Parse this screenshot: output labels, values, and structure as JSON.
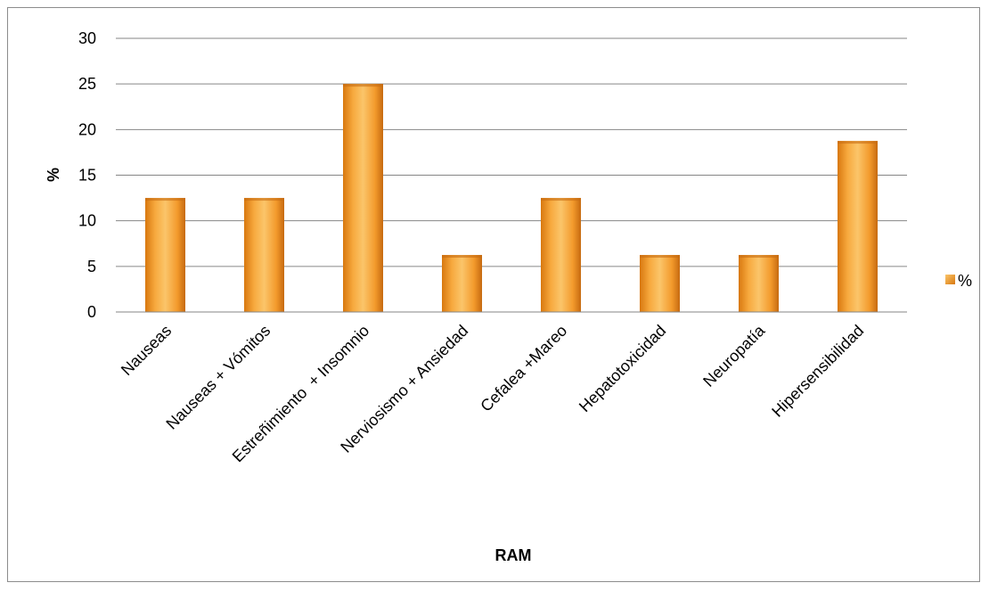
{
  "chart_data": {
    "type": "bar",
    "categories": [
      "Nauseas",
      "Nauseas + Vómitos",
      "Estreñimiento  + Insomnio",
      "Nerviosismo + Ansiedad",
      "Cefalea +Mareo",
      "Hepatotoxicidad",
      "Neuropatía",
      "Hipersensibilidad"
    ],
    "series": [
      {
        "name": "%",
        "values": [
          12.5,
          12.5,
          25,
          6.25,
          12.5,
          6.25,
          6.25,
          18.75
        ]
      }
    ],
    "xlabel": "RAM",
    "ylabel": "%",
    "ylim": [
      0,
      30
    ],
    "yticks": [
      "0",
      "5",
      "10",
      "15",
      "20",
      "25",
      "30"
    ],
    "grid": true,
    "legend": "right",
    "colors": {
      "bar_light": "#fbc56a",
      "bar_mid": "#f39a2c",
      "bar_dark": "#c66a10",
      "gridline": "#868686"
    }
  }
}
